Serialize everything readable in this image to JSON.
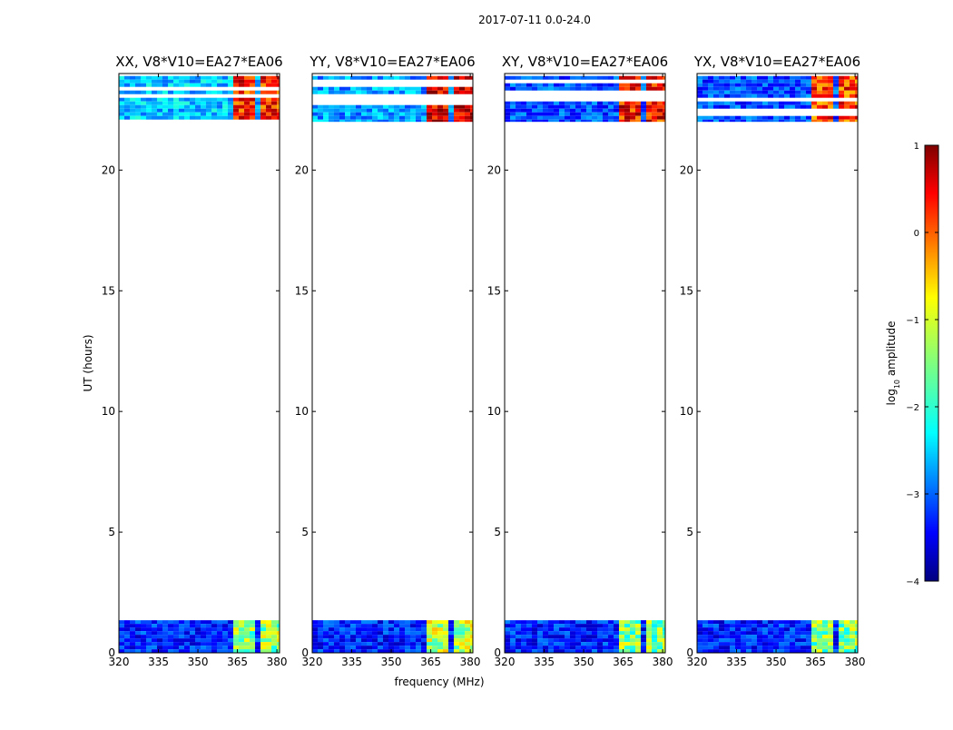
{
  "chart_data": {
    "type": "heatmap",
    "suptitle": "2017-07-11 0.0-24.0",
    "xlabel": "frequency (MHz)",
    "ylabel": "UT (hours)",
    "xlim": [
      320,
      381
    ],
    "ylim": [
      0,
      24
    ],
    "xticks": [
      320,
      335,
      350,
      365,
      380
    ],
    "yticks": [
      0,
      5,
      10,
      15,
      20
    ],
    "data_time_ranges_hours": [
      [
        0.0,
        1.35
      ],
      [
        22.0,
        23.9
      ]
    ],
    "strong_band_mhz": [
      [
        363.5,
        367.5
      ],
      [
        368.5,
        372.5
      ],
      [
        373.5,
        377.5
      ],
      [
        378.5,
        381
      ]
    ],
    "panels": [
      {
        "title": "XX, V8*V10=EA27*EA06",
        "upper_low_level": -2.4,
        "upper_band_level": 0.2,
        "lower_band_level": -1.4
      },
      {
        "title": "YY, V8*V10=EA27*EA06",
        "upper_low_level": -2.6,
        "upper_band_level": 0.6,
        "lower_band_level": -1.2
      },
      {
        "title": "XY, V8*V10=EA27*EA06",
        "upper_low_level": -3.0,
        "upper_band_level": 0.3,
        "lower_band_level": -1.5
      },
      {
        "title": "YX, V8*V10=EA27*EA06",
        "upper_low_level": -3.0,
        "upper_band_level": 0.1,
        "lower_band_level": -1.5
      }
    ],
    "colorbar": {
      "label": "log10 amplitude",
      "label_base": "log",
      "label_sub": "10",
      "label_rest": " amplitude",
      "range": [
        -4,
        1
      ],
      "ticks": [
        "1",
        "0",
        "−1",
        "−2",
        "−3",
        "−4"
      ],
      "colormap": "jet"
    }
  }
}
